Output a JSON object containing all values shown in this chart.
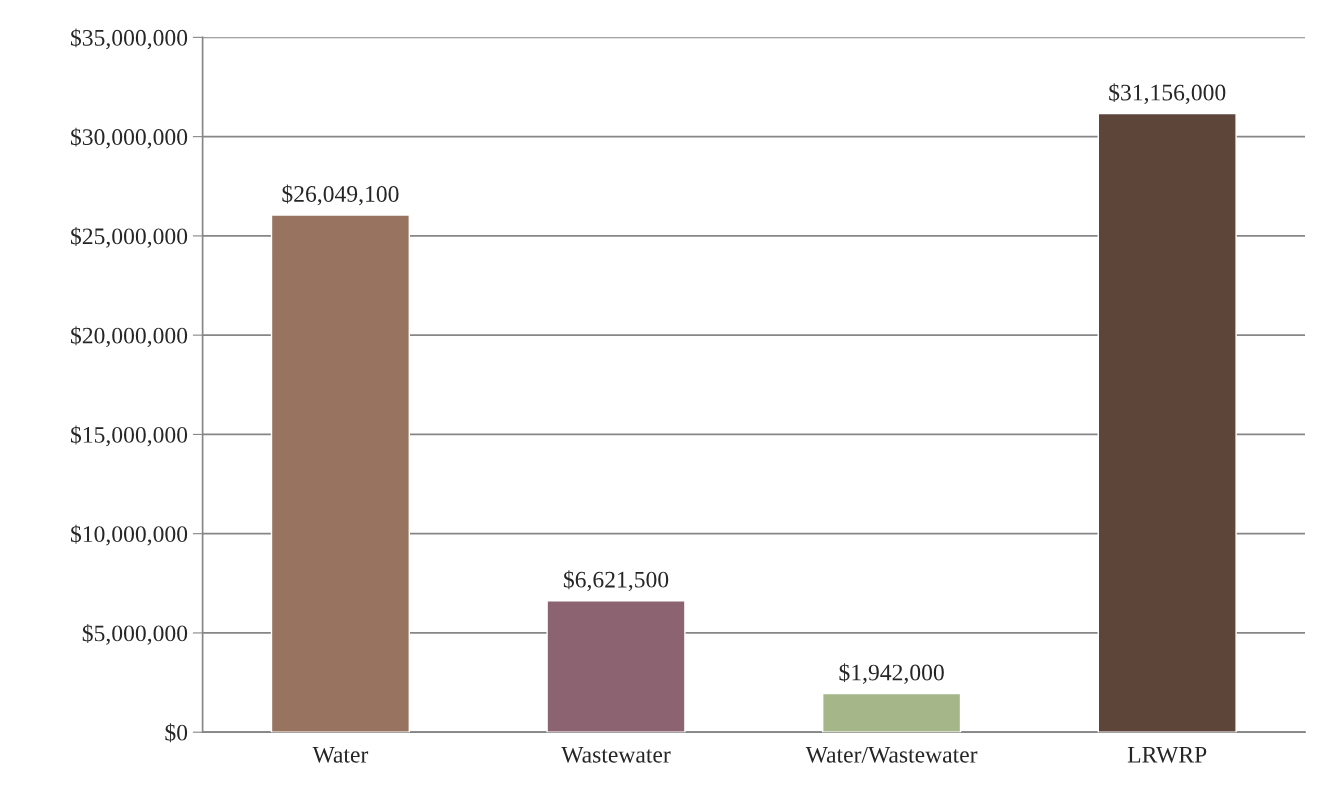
{
  "chart_data": {
    "type": "bar",
    "categories": [
      "Water",
      "Wastewater",
      "Water/Wastewater",
      "LRWRP"
    ],
    "values": [
      26049100,
      6621500,
      1942000,
      31156000
    ],
    "colors": [
      "#98735f",
      "#8c6371",
      "#a5b688",
      "#5e453a"
    ],
    "value_labels": [
      "$26,049,100",
      "$6,621,500",
      "$1,942,000",
      "$31,156,000"
    ],
    "ylim": [
      0,
      35000000
    ],
    "yticks": [
      {
        "value": 0,
        "label": "$0"
      },
      {
        "value": 5000000,
        "label": "$5,000,000"
      },
      {
        "value": 10000000,
        "label": "$10,000,000"
      },
      {
        "value": 15000000,
        "label": "$15,000,000"
      },
      {
        "value": 20000000,
        "label": "$20,000,000"
      },
      {
        "value": 25000000,
        "label": "$25,000,000"
      },
      {
        "value": 30000000,
        "label": "$30,000,000"
      },
      {
        "value": 35000000,
        "label": "$35,000,000"
      }
    ],
    "grid": "y",
    "legend": false
  }
}
